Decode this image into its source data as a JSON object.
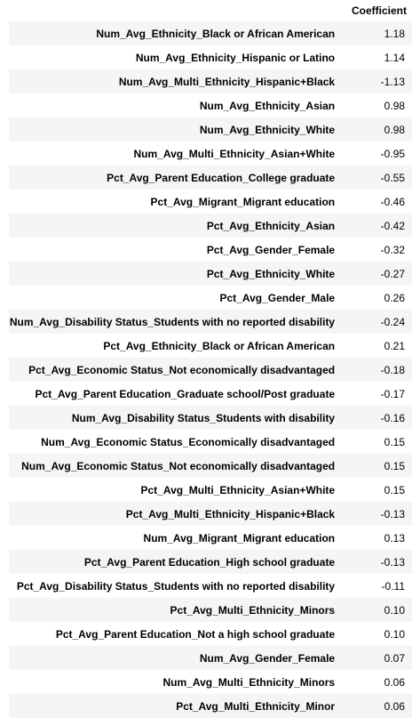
{
  "table": {
    "index_header": "",
    "column_header": "Coefficient",
    "rows": [
      {
        "feature": "Num_Avg_Ethnicity_Black or African American",
        "coefficient": "1.18"
      },
      {
        "feature": "Num_Avg_Ethnicity_Hispanic or Latino",
        "coefficient": "1.14"
      },
      {
        "feature": "Num_Avg_Multi_Ethnicity_Hispanic+Black",
        "coefficient": "-1.13"
      },
      {
        "feature": "Num_Avg_Ethnicity_Asian",
        "coefficient": "0.98"
      },
      {
        "feature": "Num_Avg_Ethnicity_White",
        "coefficient": "0.98"
      },
      {
        "feature": "Num_Avg_Multi_Ethnicity_Asian+White",
        "coefficient": "-0.95"
      },
      {
        "feature": "Pct_Avg_Parent Education_College graduate",
        "coefficient": "-0.55"
      },
      {
        "feature": "Pct_Avg_Migrant_Migrant education",
        "coefficient": "-0.46"
      },
      {
        "feature": "Pct_Avg_Ethnicity_Asian",
        "coefficient": "-0.42"
      },
      {
        "feature": "Pct_Avg_Gender_Female",
        "coefficient": "-0.32"
      },
      {
        "feature": "Pct_Avg_Ethnicity_White",
        "coefficient": "-0.27"
      },
      {
        "feature": "Pct_Avg_Gender_Male",
        "coefficient": "0.26"
      },
      {
        "feature": "Num_Avg_Disability Status_Students with no reported disability",
        "coefficient": "-0.24"
      },
      {
        "feature": "Pct_Avg_Ethnicity_Black or African American",
        "coefficient": "0.21"
      },
      {
        "feature": "Pct_Avg_Economic Status_Not economically disadvantaged",
        "coefficient": "-0.18"
      },
      {
        "feature": "Pct_Avg_Parent Education_Graduate school/Post graduate",
        "coefficient": "-0.17"
      },
      {
        "feature": "Num_Avg_Disability Status_Students with disability",
        "coefficient": "-0.16"
      },
      {
        "feature": "Num_Avg_Economic Status_Economically disadvantaged",
        "coefficient": "0.15"
      },
      {
        "feature": "Num_Avg_Economic Status_Not economically disadvantaged",
        "coefficient": "0.15"
      },
      {
        "feature": "Pct_Avg_Multi_Ethnicity_Asian+White",
        "coefficient": "0.15"
      },
      {
        "feature": "Pct_Avg_Multi_Ethnicity_Hispanic+Black",
        "coefficient": "-0.13"
      },
      {
        "feature": "Num_Avg_Migrant_Migrant education",
        "coefficient": "0.13"
      },
      {
        "feature": "Pct_Avg_Parent Education_High school graduate",
        "coefficient": "-0.13"
      },
      {
        "feature": "Pct_Avg_Disability Status_Students with no reported disability",
        "coefficient": "-0.11"
      },
      {
        "feature": "Pct_Avg_Multi_Ethnicity_Minors",
        "coefficient": "0.10"
      },
      {
        "feature": "Pct_Avg_Parent Education_Not a high school graduate",
        "coefficient": "0.10"
      },
      {
        "feature": "Num_Avg_Gender_Female",
        "coefficient": "0.07"
      },
      {
        "feature": "Num_Avg_Multi_Ethnicity_Minors",
        "coefficient": "0.06"
      },
      {
        "feature": "Pct_Avg_Multi_Ethnicity_Minor",
        "coefficient": "0.06"
      }
    ]
  }
}
